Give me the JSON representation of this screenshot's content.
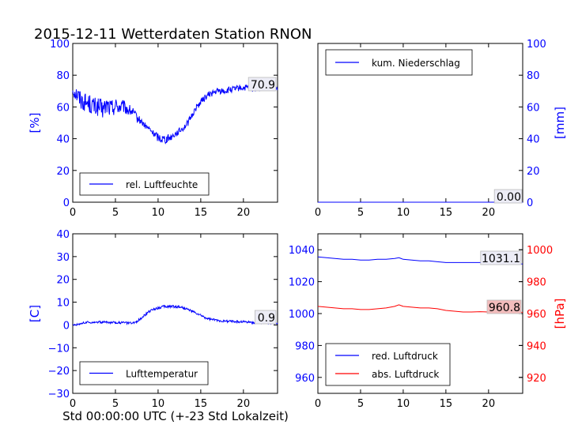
{
  "figure": {
    "title": "2015-12-11 Wetterdaten Station RNON",
    "xlabel": "Std 00:00:00 UTC (+-23 Std Lokalzeit)"
  },
  "colors": {
    "blue": "#0000ff",
    "red": "#ff0000",
    "black": "#000000",
    "value_box_red": "#f2bcbc",
    "value_box_blue": "#ececf6"
  },
  "chart_data": [
    {
      "type": "line",
      "id": "humidity",
      "ylabel": "[%]",
      "ylabel_color": "#0000ff",
      "xlim": [
        0,
        24
      ],
      "ylim": [
        0,
        100
      ],
      "xticks": [
        "0",
        "5",
        "10",
        "15",
        "20"
      ],
      "yticks": [
        "0",
        "20",
        "40",
        "60",
        "80",
        "100"
      ],
      "legend": {
        "placement": "lower-left",
        "entries": [
          "rel. Luftfeuchte"
        ]
      },
      "last_value_label": "70.9",
      "series": [
        {
          "name": "rel. Luftfeuchte",
          "color": "#0000ff",
          "x": [
            0,
            0.5,
            1,
            1.5,
            2,
            2.5,
            3,
            3.5,
            4,
            4.5,
            5,
            5.5,
            6,
            6.5,
            7,
            7.5,
            8,
            8.5,
            9,
            9.5,
            10,
            10.5,
            11,
            11.5,
            12,
            12.5,
            13,
            13.5,
            14,
            14.5,
            15,
            15.5,
            16,
            16.5,
            17,
            17.5,
            18,
            18.5,
            19,
            19.5,
            20,
            20.5,
            21,
            21.5,
            22,
            22.5,
            23,
            23.5,
            24
          ],
          "y": [
            71,
            68,
            64,
            63,
            62,
            60,
            60,
            58,
            61,
            59,
            61,
            60,
            60,
            58,
            57,
            53,
            51,
            48,
            46,
            43,
            41,
            40,
            40,
            41,
            43,
            45,
            47,
            50,
            55,
            60,
            63,
            66,
            68,
            69,
            70,
            70,
            70,
            71,
            71,
            72,
            72,
            72,
            71,
            72,
            72,
            72,
            72,
            72,
            71
          ],
          "noise_amplitude": [
            4,
            6,
            6,
            6,
            6,
            6,
            6,
            6,
            6,
            6,
            5,
            5,
            4,
            4,
            3,
            3,
            2,
            2,
            2,
            2,
            3,
            3,
            3,
            2,
            2,
            2,
            2,
            2,
            2,
            2,
            2,
            2,
            2,
            2,
            2,
            2,
            2,
            2,
            2,
            2,
            2,
            2,
            2,
            2,
            2,
            2,
            2,
            2,
            2
          ]
        }
      ]
    },
    {
      "type": "line",
      "id": "precipitation",
      "ylabel": "[mm]",
      "ylabel_color": "#0000ff",
      "yaxis_side": "right",
      "xlim": [
        0,
        24
      ],
      "ylim": [
        0,
        100
      ],
      "xticks": [
        "0",
        "5",
        "10",
        "15",
        "20"
      ],
      "yticks": [
        "0",
        "20",
        "40",
        "60",
        "80",
        "100"
      ],
      "legend": {
        "placement": "upper-left",
        "entries": [
          "kum. Niederschlag"
        ]
      },
      "last_value_label": "0.00",
      "series": [
        {
          "name": "kum. Niederschlag",
          "color": "#0000ff",
          "x": [
            0,
            24
          ],
          "y": [
            0,
            0
          ]
        }
      ]
    },
    {
      "type": "line",
      "id": "temperature",
      "ylabel": "[C]",
      "ylabel_color": "#0000ff",
      "xlim": [
        0,
        24
      ],
      "ylim": [
        -30,
        40
      ],
      "xticks": [
        "0",
        "5",
        "10",
        "15",
        "20"
      ],
      "yticks": [
        "−30",
        "−20",
        "−10",
        "0",
        "10",
        "20",
        "30",
        "40"
      ],
      "legend": {
        "placement": "lower-left",
        "entries": [
          "Lufttemperatur"
        ]
      },
      "last_value_label": "0.9",
      "series": [
        {
          "name": "Lufttemperatur",
          "color": "#0000ff",
          "x": [
            0,
            0.5,
            1,
            1.5,
            2,
            2.5,
            3,
            3.5,
            4,
            4.5,
            5,
            5.5,
            6,
            6.5,
            7,
            7.5,
            8,
            8.5,
            9,
            9.5,
            10,
            10.5,
            11,
            11.5,
            12,
            12.5,
            13,
            13.5,
            14,
            14.5,
            15,
            15.5,
            16,
            16.5,
            17,
            17.5,
            18,
            18.5,
            19,
            19.5,
            20,
            20.5,
            21,
            21.5,
            22,
            22.5,
            23,
            23.5,
            24
          ],
          "y": [
            0,
            0.3,
            0.8,
            1.0,
            1.2,
            1.3,
            1.2,
            1.3,
            1.2,
            1.0,
            1.2,
            1.0,
            1.0,
            0.8,
            0.7,
            1.5,
            3.0,
            4.5,
            6.0,
            7.0,
            7.5,
            8.0,
            8.0,
            8.2,
            8.0,
            8.0,
            7.5,
            6.8,
            6.0,
            5.0,
            4.2,
            3.2,
            2.6,
            2.3,
            2.0,
            1.8,
            1.6,
            1.7,
            1.5,
            1.4,
            1.5,
            1.3,
            1.1,
            1.0,
            1.0,
            1.0,
            0.9,
            0.9,
            0.9
          ],
          "noise_amplitude": [
            0.5,
            0.5,
            0.5,
            0.5,
            0.5,
            0.5,
            0.5,
            0.5,
            0.5,
            0.5,
            0.5,
            0.5,
            0.5,
            0.5,
            0.5,
            0.5,
            0.5,
            0.5,
            0.6,
            0.6,
            0.6,
            0.6,
            0.6,
            0.6,
            0.6,
            0.6,
            0.6,
            0.5,
            0.5,
            0.5,
            0.5,
            0.5,
            0.5,
            0.5,
            0.5,
            0.5,
            0.5,
            0.5,
            0.5,
            0.5,
            0.5,
            0.5,
            0.5,
            0.5,
            0.5,
            0.5,
            0.5,
            0.5,
            0.5
          ]
        }
      ]
    },
    {
      "type": "line",
      "id": "pressure",
      "ylabel": "[hPa]",
      "ylabel_color": "#ff0000",
      "xlim": [
        0,
        24
      ],
      "ylim_left": [
        950,
        1050
      ],
      "ylim_right": [
        910,
        1010
      ],
      "xticks": [
        "0",
        "5",
        "10",
        "15",
        "20"
      ],
      "yticks_left": [
        "960",
        "980",
        "1000",
        "1020",
        "1040"
      ],
      "yticks_right": [
        "920",
        "940",
        "960",
        "980",
        "1000"
      ],
      "legend": {
        "placement": "lower-left",
        "entries": [
          "red. Luftdruck",
          "abs. Luftdruck"
        ]
      },
      "last_value_labels": {
        "red": "1031.1",
        "abs": "960.8"
      },
      "series": [
        {
          "name": "red. Luftdruck",
          "color": "#0000ff",
          "axis": "left",
          "x": [
            0,
            1,
            2,
            3,
            4,
            5,
            6,
            7,
            8,
            9,
            9.5,
            10,
            11,
            12,
            13,
            14,
            15,
            16,
            17,
            18,
            19,
            20,
            21,
            22,
            23,
            24
          ],
          "y": [
            1035.5,
            1035,
            1034.5,
            1034,
            1034,
            1033.5,
            1033.5,
            1034,
            1034,
            1034.5,
            1035,
            1034,
            1033.5,
            1033,
            1033,
            1032.5,
            1032,
            1032,
            1032,
            1032,
            1032,
            1032,
            1032,
            1031.5,
            1031.2,
            1031.1
          ]
        },
        {
          "name": "abs. Luftdruck",
          "color": "#ff0000",
          "axis": "right",
          "x": [
            0,
            1,
            2,
            3,
            4,
            5,
            6,
            7,
            8,
            9,
            9.5,
            10,
            11,
            12,
            13,
            14,
            15,
            16,
            17,
            18,
            19,
            20,
            21,
            22,
            23,
            24
          ],
          "y": [
            964.5,
            964,
            963.5,
            963,
            963,
            962.5,
            962.5,
            963,
            963.5,
            964.5,
            965.5,
            964.5,
            964,
            963.5,
            963.5,
            963,
            962,
            961.5,
            961,
            961,
            961.2,
            961,
            961.5,
            961,
            960.8,
            960.8
          ]
        }
      ]
    }
  ]
}
